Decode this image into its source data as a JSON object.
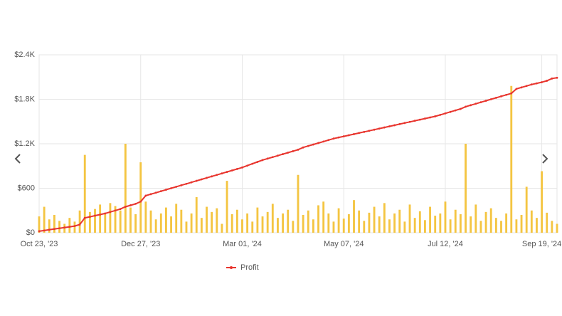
{
  "chart_data": {
    "type": "bar",
    "categories": [
      "Oct 23, '23",
      null,
      null,
      null,
      null,
      null,
      null,
      null,
      null,
      null,
      null,
      null,
      null,
      null,
      null,
      null,
      null,
      null,
      null,
      null,
      "Dec 27, '23",
      null,
      null,
      null,
      null,
      null,
      null,
      null,
      null,
      null,
      null,
      null,
      null,
      null,
      null,
      null,
      null,
      null,
      null,
      null,
      "Mar 01, '24",
      null,
      null,
      null,
      null,
      null,
      null,
      null,
      null,
      null,
      null,
      null,
      null,
      null,
      null,
      null,
      null,
      null,
      null,
      null,
      "May 07, '24",
      null,
      null,
      null,
      null,
      null,
      null,
      null,
      null,
      null,
      null,
      null,
      null,
      null,
      null,
      null,
      null,
      null,
      null,
      null,
      "Jul 12, '24",
      null,
      null,
      null,
      null,
      null,
      null,
      null,
      null,
      null,
      null,
      null,
      null,
      null,
      null,
      null,
      null,
      null,
      null,
      "Sep 19, '24",
      null,
      null,
      null
    ],
    "series": [
      {
        "type": "bar",
        "color": "#f4c542",
        "values": [
          220,
          350,
          180,
          240,
          160,
          120,
          200,
          150,
          300,
          1050,
          280,
          320,
          380,
          250,
          400,
          360,
          300,
          1200,
          340,
          250,
          950,
          420,
          300,
          180,
          260,
          340,
          220,
          390,
          310,
          150,
          260,
          480,
          200,
          350,
          280,
          330,
          120,
          700,
          250,
          310,
          180,
          260,
          150,
          340,
          220,
          280,
          390,
          200,
          260,
          310,
          160,
          780,
          240,
          300,
          180,
          370,
          420,
          260,
          150,
          330,
          190,
          250,
          440,
          300,
          160,
          270,
          350,
          220,
          400,
          180,
          260,
          310,
          150,
          380,
          200,
          290,
          170,
          350,
          230,
          260,
          420,
          180,
          310,
          250,
          1200,
          220,
          380,
          160,
          280,
          330,
          200,
          160,
          260,
          1980,
          180,
          240,
          620,
          300,
          200,
          830,
          270,
          160,
          120
        ]
      },
      {
        "name": "Profit",
        "type": "line",
        "color": "#e8352e",
        "values": [
          20,
          30,
          40,
          50,
          60,
          70,
          80,
          90,
          110,
          200,
          215,
          230,
          245,
          260,
          280,
          300,
          320,
          350,
          370,
          390,
          420,
          500,
          520,
          540,
          560,
          580,
          600,
          620,
          640,
          660,
          680,
          700,
          720,
          740,
          760,
          780,
          800,
          820,
          840,
          860,
          880,
          905,
          930,
          955,
          980,
          1000,
          1020,
          1040,
          1060,
          1080,
          1100,
          1120,
          1150,
          1170,
          1190,
          1210,
          1230,
          1250,
          1270,
          1285,
          1300,
          1315,
          1330,
          1345,
          1360,
          1375,
          1390,
          1405,
          1420,
          1435,
          1450,
          1465,
          1480,
          1495,
          1510,
          1525,
          1540,
          1555,
          1570,
          1590,
          1610,
          1630,
          1650,
          1670,
          1700,
          1720,
          1740,
          1760,
          1780,
          1800,
          1820,
          1840,
          1860,
          1880,
          1940,
          1960,
          1980,
          2000,
          2015,
          2030,
          2050,
          2080,
          2090
        ]
      }
    ],
    "ylim": [
      0,
      2400
    ],
    "yticks": [
      {
        "value": 0,
        "label": "$0"
      },
      {
        "value": 600,
        "label": "$600"
      },
      {
        "value": 1200,
        "label": "$1.2K"
      },
      {
        "value": 1800,
        "label": "$1.8K"
      },
      {
        "value": 2400,
        "label": "$2.4K"
      }
    ],
    "grid": true,
    "legend": "bottom"
  }
}
